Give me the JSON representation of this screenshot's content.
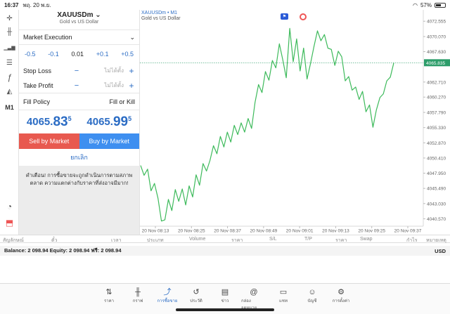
{
  "status": {
    "time": "16:37",
    "date": "พฤ. 20 พ.ย.",
    "battery": "57%",
    "battery_level": 0.57
  },
  "left_toolbar": [
    {
      "name": "crosshair-icon",
      "glyph": "✛"
    },
    {
      "name": "candlestick-icon",
      "glyph": "╫"
    },
    {
      "name": "bar-chart-icon",
      "glyph": "▁▃▆"
    },
    {
      "name": "settings-sliders-icon",
      "glyph": "☰"
    },
    {
      "name": "function-icon",
      "glyph": "ƒ"
    },
    {
      "name": "objects-icon",
      "glyph": "◭"
    },
    {
      "name": "timeframe-label",
      "glyph": "M1"
    },
    {
      "name": "signal-icon",
      "glyph": "◔"
    },
    {
      "name": "trade-icon",
      "glyph": "⬒"
    }
  ],
  "order": {
    "symbol": "XAUUSDm",
    "chevron": "⌄",
    "description": "Gold vs US Dollar",
    "execution": "Market Execution",
    "volume_steps": [
      "-0.5",
      "-0.1",
      "0.01",
      "+0.1",
      "+0.5"
    ],
    "stop_loss_label": "Stop Loss",
    "take_profit_label": "Take Profit",
    "not_set": "ไม่ได้ตั้ง",
    "minus": "−",
    "plus": "+",
    "fill_policy_label": "Fill Policy",
    "fill_policy_value": "Fill or Kill",
    "bid": {
      "main": "4065.",
      "large": "83",
      "sup": "5"
    },
    "ask": {
      "main": "4065.",
      "large": "99",
      "sup": "5"
    },
    "sell_label": "Sell by Market",
    "buy_label": "Buy by Market",
    "cancel_label": "ยกเลิก",
    "warning": "คำเตือน! การซื้อขายจะถูกดำเนินการตามสภาพตลาด ความแตกต่างกับราคาที่ส่งอาจมีมาก!"
  },
  "chart": {
    "title": "XAUUSDm • M1",
    "subtitle": "Gold vs US Dollar",
    "current_price_label": "4065.835"
  },
  "chart_data": {
    "type": "line",
    "title": "XAUUSDm • M1",
    "subtitle": "Gold vs US Dollar",
    "current_price": 4065.835,
    "ylim": [
      4039.37,
      4074.4
    ],
    "y_ticks": [
      "4072.555",
      "4070.070",
      "4067.630",
      "4065.835",
      "4062.710",
      "4060.270",
      "4057.790",
      "4055.330",
      "4052.870",
      "4050.410",
      "4047.950",
      "4045.490",
      "4043.030",
      "4040.570"
    ],
    "x_ticks": [
      "20 Nov 08:13",
      "20 Nov 08:25",
      "20 Nov 08:37",
      "20 Nov 08:49",
      "20 Nov 09:01",
      "20 Nov 09:13",
      "20 Nov 09:25",
      "20 Nov 09:37"
    ],
    "values": [
      4049.2,
      4047.6,
      4048.6,
      4045.1,
      4046.3,
      4043.9,
      4040.2,
      4040.4,
      4043.7,
      4041.9,
      4045.3,
      4043.4,
      4045.4,
      4042.8,
      4045.9,
      4044.1,
      4047.7,
      4046.0,
      4049.5,
      4048.3,
      4050.0,
      4052.4,
      4051.1,
      4053.9,
      4052.2,
      4054.6,
      4053.0,
      4055.7,
      4054.2,
      4056.1,
      4054.6,
      4056.8,
      4055.2,
      4059.4,
      4062.3,
      4061.0,
      4064.4,
      4063.0,
      4066.2,
      4065.0,
      4068.9,
      4066.3,
      4063.4,
      4071.4,
      4066.0,
      4069.7,
      4064.5,
      4068.2,
      4063.2,
      4065.7,
      4068.5,
      4071.0,
      4069.4,
      4070.4,
      4068.2,
      4068.0,
      4065.4,
      4067.7,
      4066.8,
      4062.9,
      4063.6,
      4061.4,
      4061.9,
      4059.9,
      4061.2,
      4057.9,
      4059.0,
      4055.4,
      4058.2,
      4060.2,
      4060.8,
      4062.9,
      4063.5,
      4065.8
    ],
    "line_color": "#3dba5b",
    "current_line_color": "#2d9d6a",
    "grid": false
  },
  "columns": [
    "สัญลักษณ์",
    "ตั๋ว",
    "เวลา",
    "ประเภท",
    "Volume",
    "ราคา",
    "S/L",
    "T/P",
    "ราคา",
    "Swap",
    "กำไร",
    "หมายเหตุ"
  ],
  "balance": {
    "text": "Balance: 2 098.94 Equity: 2 098.94 ฟรี: 2 098.94",
    "currency": "USD"
  },
  "nav": [
    {
      "name": "nav-quotes",
      "icon": "⇅",
      "label": "ราคา"
    },
    {
      "name": "nav-chart",
      "icon": "╫",
      "label": "กราฟ"
    },
    {
      "name": "nav-trade",
      "icon": "⤴",
      "label": "การซื้อขาย",
      "active": true
    },
    {
      "name": "nav-history",
      "icon": "↺",
      "label": "ประวัติ"
    },
    {
      "name": "nav-news",
      "icon": "▤",
      "label": "ข่าว"
    },
    {
      "name": "nav-mailbox",
      "icon": "@",
      "label": "กล่องจดหมาย"
    },
    {
      "name": "nav-chat",
      "icon": "▭",
      "label": "แชท"
    },
    {
      "name": "nav-account",
      "icon": "☺",
      "label": "บัญชี"
    },
    {
      "name": "nav-settings",
      "icon": "⚙",
      "label": "การตั้งค่า"
    }
  ]
}
